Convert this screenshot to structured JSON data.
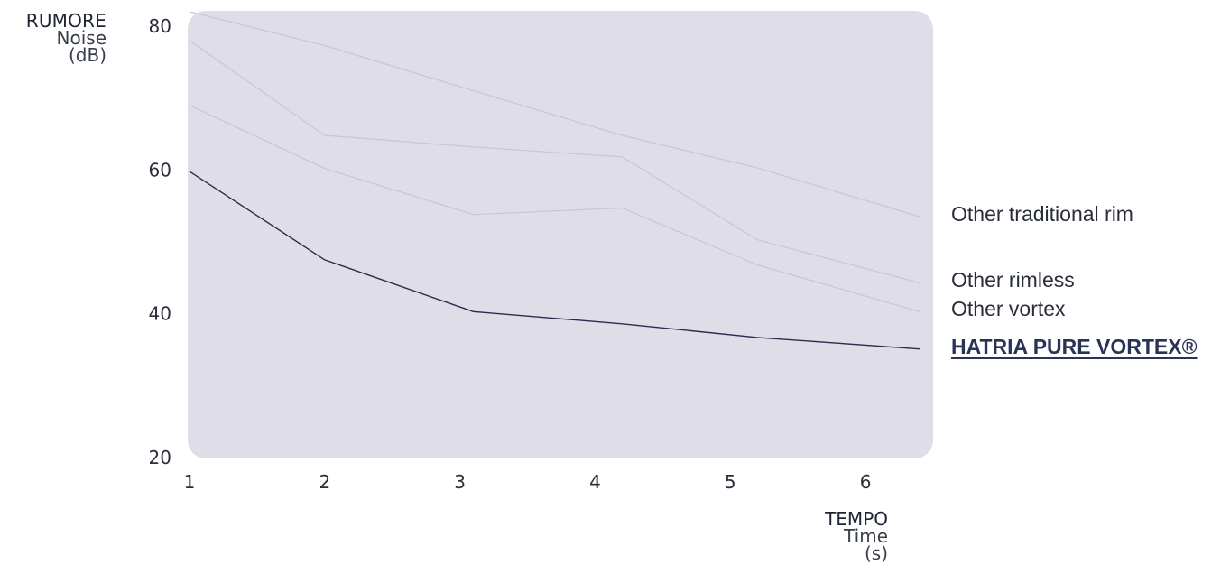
{
  "chart_data": {
    "type": "line",
    "y_axis": {
      "label_top": "RUMORE",
      "label_main": "Noise",
      "unit": "(dB)",
      "ylim": [
        20,
        82
      ],
      "ticks": [
        80,
        60,
        40,
        20
      ]
    },
    "x_axis": {
      "label_top": "TEMPO",
      "label_main": "Time",
      "unit": "(s)",
      "xlim": [
        1,
        6.5
      ],
      "ticks": [
        1,
        2,
        3,
        4,
        5,
        6
      ]
    },
    "x": [
      1,
      2,
      3.1,
      4.2,
      5.2,
      6.4
    ],
    "series": [
      {
        "name": "Other traditional rim",
        "values": [
          82,
          77.3,
          71,
          64.8,
          60.3,
          53.5
        ],
        "color": "#c8c6d3",
        "highlight": false
      },
      {
        "name": "Other rimless",
        "values": [
          78,
          64.8,
          63.2,
          61.8,
          50.3,
          44.3
        ],
        "color": "#c8c6d3",
        "highlight": false
      },
      {
        "name": "Other vortex",
        "values": [
          69,
          60.2,
          53.8,
          54.7,
          46.8,
          40.3
        ],
        "color": "#c8c6d3",
        "highlight": false
      },
      {
        "name": "HATRIA PURE VORTEX®",
        "values": [
          59.8,
          47.5,
          40.3,
          38.6,
          36.7,
          35.1
        ],
        "color": "#262d4e",
        "highlight": true
      }
    ],
    "legend_placement": "right",
    "grid": false,
    "plot_background": "#dfdde7"
  }
}
